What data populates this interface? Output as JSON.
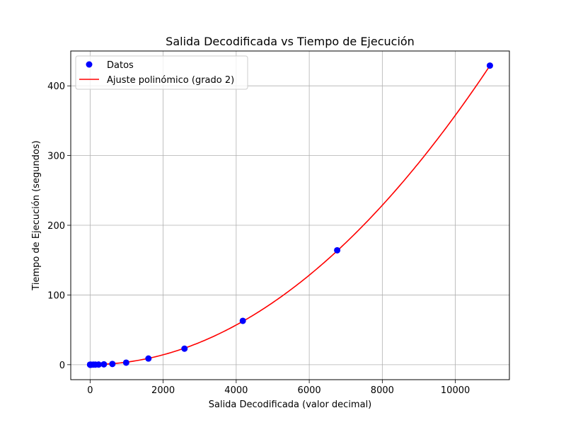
{
  "chart_data": {
    "type": "scatter",
    "title": "Salida Decodificada vs Tiempo de Ejecución",
    "xlabel": "Salida Decodificada (valor decimal)",
    "ylabel": "Tiempo de Ejecución (segundos)",
    "xlim": [
      -530,
      11480
    ],
    "ylim": [
      -21.5,
      450
    ],
    "xticks": [
      0,
      2000,
      4000,
      6000,
      8000,
      10000
    ],
    "yticks": [
      0,
      100,
      200,
      300,
      400
    ],
    "grid": true,
    "legend_position": "top-left",
    "series": [
      {
        "name": "Datos",
        "kind": "scatter",
        "color": "#0000ff",
        "points": [
          {
            "x": 0,
            "y": 0.0
          },
          {
            "x": 1,
            "y": 0.0
          },
          {
            "x": 2,
            "y": 0.0
          },
          {
            "x": 5,
            "y": 0.0
          },
          {
            "x": 13,
            "y": 0.0
          },
          {
            "x": 34,
            "y": 0.0
          },
          {
            "x": 89,
            "y": 0.1
          },
          {
            "x": 144,
            "y": 0.1
          },
          {
            "x": 233,
            "y": 0.2
          },
          {
            "x": 377,
            "y": 0.5
          },
          {
            "x": 610,
            "y": 1.0
          },
          {
            "x": 987,
            "y": 2.9
          },
          {
            "x": 1597,
            "y": 8.8
          },
          {
            "x": 2584,
            "y": 23.0
          },
          {
            "x": 4181,
            "y": 62.9
          },
          {
            "x": 6765,
            "y": 164.1
          },
          {
            "x": 10946,
            "y": 429.1
          }
        ]
      },
      {
        "name": "Ajuste polinómico (grado 2)",
        "kind": "line",
        "color": "#ff0000",
        "coefficients": {
          "a": 3.6e-06,
          "b": -0.00025,
          "c": 0.3
        },
        "x_range": [
          0,
          10946
        ]
      }
    ]
  }
}
